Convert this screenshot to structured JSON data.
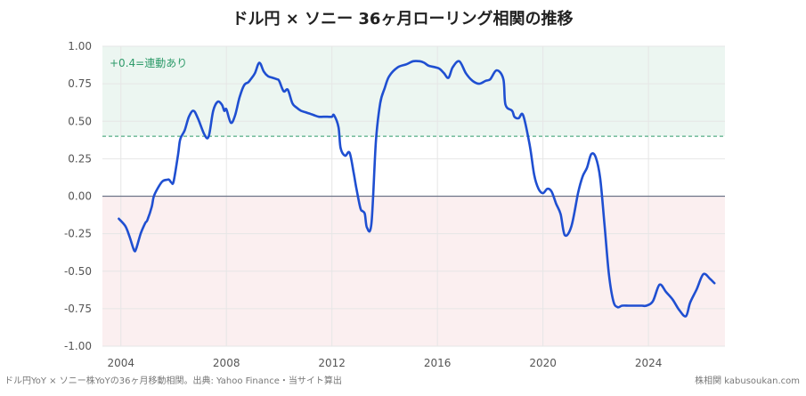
{
  "colors": {
    "line": "#1f4fd1",
    "positive_band": "#ecf6f1",
    "negative_band": "#fbeff0",
    "threshold": "#2e9b6a",
    "zero_line": "#6e7488",
    "grid": "#e6e6e6"
  },
  "footer": {
    "left": "ドル円YoY × ソニー株YoYの36ヶ月移動相関。出典: Yahoo Finance・当サイト算出",
    "right": "株相関 kabusoukan.com"
  },
  "chart_data": {
    "type": "line",
    "title": "ドル円 × ソニー 36ヶ月ローリング相関の推移",
    "xlabel": "",
    "ylabel": "",
    "xlim": [
      2003.3,
      2026.9
    ],
    "ylim": [
      -1.0,
      1.0
    ],
    "x_ticks": [
      2004,
      2008,
      2012,
      2016,
      2020,
      2024
    ],
    "y_ticks": [
      1.0,
      0.75,
      0.5,
      0.25,
      0.0,
      -0.25,
      -0.5,
      -0.75,
      -1.0
    ],
    "y_tick_labels": [
      "1.00",
      "0.75",
      "0.50",
      "0.25",
      "0.00",
      "-0.25",
      "-0.50",
      "-0.75",
      "-1.00"
    ],
    "threshold": 0.4,
    "threshold_label": "+0.4=連動あり",
    "grid": true,
    "series": [
      {
        "x": [
          2003.92,
          2004.17,
          2004.33,
          2004.5,
          2004.58,
          2004.75,
          2004.92,
          2005.0,
          2005.17,
          2005.25,
          2005.42,
          2005.58,
          2005.75,
          2005.83,
          2005.92,
          2006.0,
          2006.17,
          2006.25,
          2006.42,
          2006.58,
          2006.75,
          2006.92,
          2007.17,
          2007.33,
          2007.5,
          2007.67,
          2007.83,
          2007.92,
          2008.0,
          2008.17,
          2008.33,
          2008.5,
          2008.67,
          2008.83,
          2008.92,
          2009.08,
          2009.25,
          2009.42,
          2009.58,
          2009.75,
          2009.92,
          2010.0,
          2010.17,
          2010.33,
          2010.5,
          2010.67,
          2010.83,
          2011.0,
          2011.17,
          2011.33,
          2011.5,
          2011.67,
          2011.83,
          2012.0,
          2012.08,
          2012.25,
          2012.33,
          2012.5,
          2012.67,
          2012.83,
          2012.92,
          2013.08,
          2013.17,
          2013.25,
          2013.33,
          2013.5,
          2013.67,
          2013.83,
          2014.0,
          2014.17,
          2014.5,
          2014.83,
          2015.08,
          2015.33,
          2015.5,
          2015.67,
          2015.92,
          2016.08,
          2016.25,
          2016.42,
          2016.58,
          2016.83,
          2017.08,
          2017.33,
          2017.58,
          2017.83,
          2018.0,
          2018.25,
          2018.5,
          2018.58,
          2018.83,
          2018.92,
          2019.08,
          2019.25,
          2019.5,
          2019.67,
          2019.83,
          2020.0,
          2020.17,
          2020.33,
          2020.5,
          2020.67,
          2020.83,
          2021.08,
          2021.33,
          2021.5,
          2021.67,
          2021.83,
          2022.0,
          2022.17,
          2022.33,
          2022.5,
          2022.67,
          2022.83,
          2023.0,
          2023.25,
          2023.5,
          2023.75,
          2023.92,
          2024.17,
          2024.42,
          2024.67,
          2024.92,
          2025.17,
          2025.42,
          2025.58,
          2025.83,
          2026.08,
          2026.33,
          2026.5
        ],
        "y": [
          -0.15,
          -0.2,
          -0.27,
          -0.36,
          -0.35,
          -0.25,
          -0.18,
          -0.16,
          -0.07,
          0.0,
          0.06,
          0.1,
          0.11,
          0.11,
          0.09,
          0.1,
          0.28,
          0.38,
          0.44,
          0.53,
          0.57,
          0.52,
          0.41,
          0.4,
          0.57,
          0.63,
          0.61,
          0.57,
          0.58,
          0.49,
          0.54,
          0.66,
          0.74,
          0.76,
          0.78,
          0.82,
          0.89,
          0.83,
          0.8,
          0.79,
          0.78,
          0.77,
          0.7,
          0.71,
          0.62,
          0.59,
          0.57,
          0.56,
          0.55,
          0.54,
          0.53,
          0.53,
          0.53,
          0.53,
          0.54,
          0.46,
          0.32,
          0.27,
          0.29,
          0.15,
          0.06,
          -0.08,
          -0.1,
          -0.12,
          -0.21,
          -0.18,
          0.37,
          0.62,
          0.72,
          0.8,
          0.86,
          0.88,
          0.9,
          0.9,
          0.89,
          0.87,
          0.86,
          0.85,
          0.82,
          0.79,
          0.86,
          0.9,
          0.82,
          0.77,
          0.75,
          0.77,
          0.78,
          0.84,
          0.78,
          0.61,
          0.57,
          0.53,
          0.52,
          0.54,
          0.34,
          0.14,
          0.05,
          0.02,
          0.05,
          0.03,
          -0.05,
          -0.12,
          -0.26,
          -0.2,
          0.02,
          0.13,
          0.19,
          0.28,
          0.26,
          0.12,
          -0.18,
          -0.52,
          -0.7,
          -0.74,
          -0.73,
          -0.73,
          -0.73,
          -0.73,
          -0.73,
          -0.7,
          -0.59,
          -0.64,
          -0.69,
          -0.76,
          -0.8,
          -0.71,
          -0.62,
          -0.52,
          -0.55,
          -0.58
        ]
      }
    ]
  }
}
